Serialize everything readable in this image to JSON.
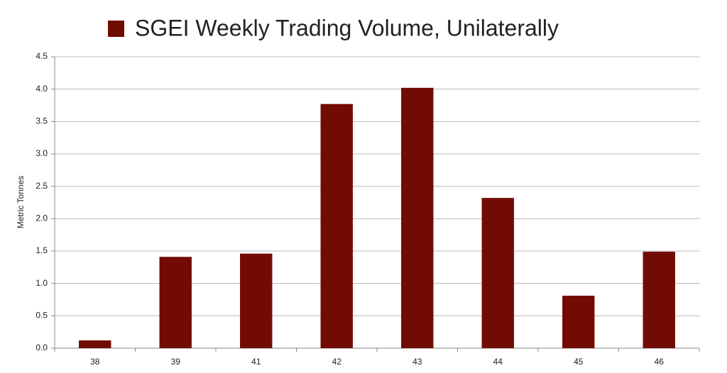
{
  "chart_data": {
    "type": "bar",
    "y_label": "Metric Tonnes",
    "categories": [
      "38",
      "39",
      "41",
      "42",
      "43",
      "44",
      "45",
      "46"
    ],
    "series": [
      {
        "name": "SGEI Weekly Trading Volume, Unilaterally",
        "color": "#720c03",
        "values": [
          0.12,
          1.41,
          1.46,
          3.77,
          4.02,
          2.32,
          0.81,
          1.49
        ]
      }
    ],
    "ylim": [
      0,
      4.5
    ],
    "yticks": [
      {
        "value": 0,
        "label": "0.0"
      },
      0.5,
      {
        "value": 1,
        "label": "1.0"
      },
      1.5,
      {
        "value": 2,
        "label": "2.0"
      },
      2.5,
      {
        "value": 3,
        "label": "3.0"
      },
      3.5,
      {
        "value": 4,
        "label": "4.0"
      },
      4.5
    ],
    "grid": true,
    "legend": "top"
  }
}
